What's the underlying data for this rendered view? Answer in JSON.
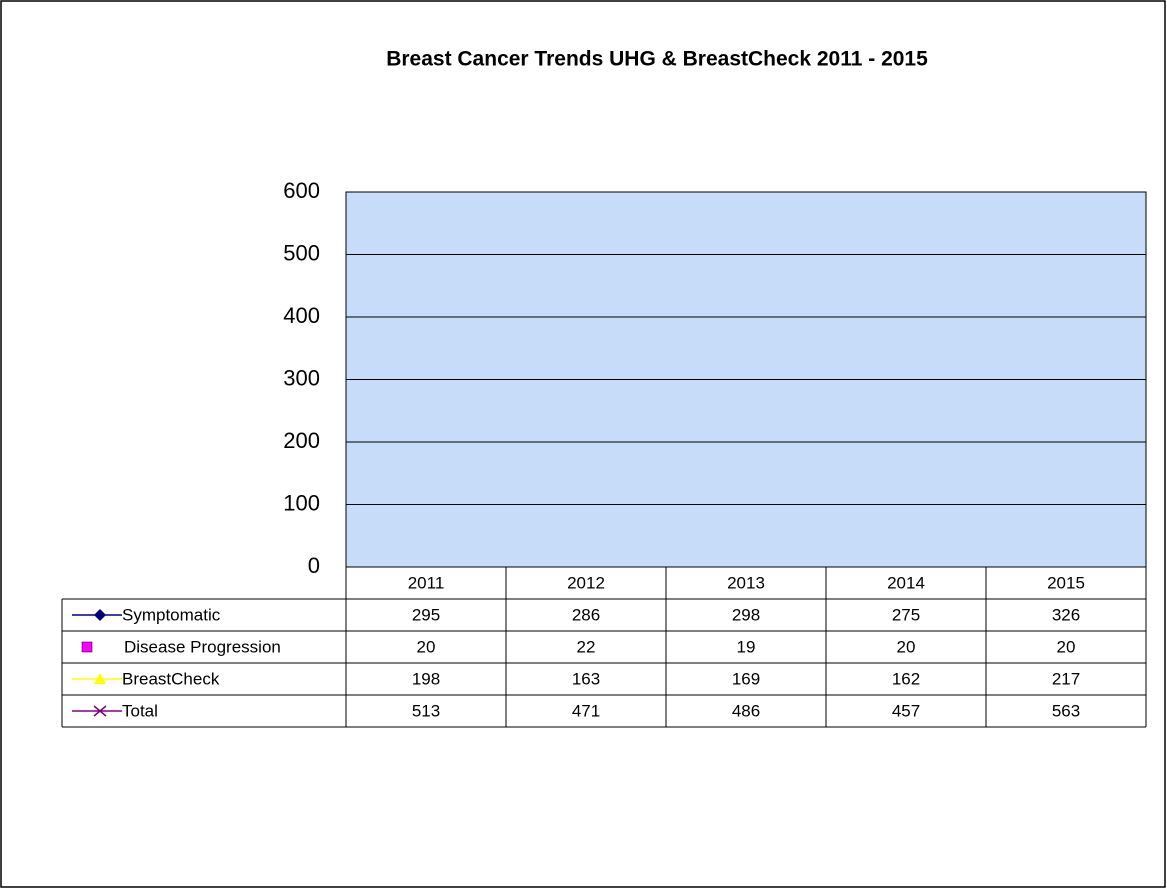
{
  "chart_data": {
    "type": "line",
    "title": "Breast Cancer Trends UHG & BreastCheck 2011 - 2015",
    "categories": [
      "2011",
      "2012",
      "2013",
      "2014",
      "2015"
    ],
    "series": [
      {
        "name": "Symptomatic",
        "color": "#000080",
        "marker": "diamond",
        "values": [
          295,
          286,
          298,
          275,
          326
        ]
      },
      {
        "name": "Disease Progression",
        "color": "#ff00ff",
        "marker": "square",
        "values": [
          20,
          22,
          19,
          20,
          20
        ]
      },
      {
        "name": "BreastCheck",
        "color": "#ffff00",
        "marker": "triangle",
        "values": [
          198,
          163,
          169,
          162,
          217
        ]
      },
      {
        "name": "Total",
        "color": "#800080",
        "marker": "x",
        "values": [
          513,
          471,
          486,
          457,
          563
        ]
      }
    ],
    "ylim": [
      0,
      600
    ],
    "yticks": [
      0,
      100,
      200,
      300,
      400,
      500,
      600
    ],
    "grid": true,
    "plot_background": "#c6dcf8"
  }
}
